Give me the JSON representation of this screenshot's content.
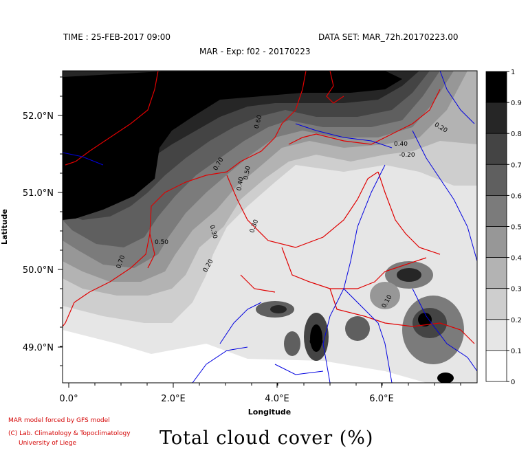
{
  "header": {
    "time": "TIME : 25-FEB-2017 09:00",
    "dataset": "DATA SET: MAR_72h.20170223.00",
    "experiment": "MAR - Exp: f02 - 20170223"
  },
  "map": {
    "xlabel": "Longitude",
    "ylabel": "Latitude",
    "x_ticks": [
      "0.0°",
      "2.0°E",
      "4.0°E",
      "6.0°E"
    ],
    "y_ticks": [
      "52.0°N",
      "51.0°N",
      "50.0°N",
      "49.0°N"
    ],
    "contour_labels": [
      "0.70",
      "0.60",
      "0.50",
      "0.40",
      "0.30",
      "0.20",
      "0.70",
      "0.50",
      "0.40",
      "0.30",
      "0.20",
      "-0.20",
      "0.10",
      "0.50"
    ],
    "border_color": "#e00000",
    "river_color": "#0000e0"
  },
  "colorbar": {
    "levels": [
      "1",
      "0.9",
      "0.8",
      "0.7",
      "0.6",
      "0.5",
      "0.4",
      "0.3",
      "0.2",
      "0.1",
      "0"
    ],
    "colors": [
      "#000000",
      "#262626",
      "#444444",
      "#5f5f5f",
      "#7b7b7b",
      "#979797",
      "#b3b3b3",
      "#cecece",
      "#e6e6e6",
      "#ffffff"
    ]
  },
  "footer": {
    "credit_line1": "MAR model forced by GFS model",
    "credit_line2": "(C) Lab. Climatology & Topoclimatology",
    "credit_line3": "University of Liege",
    "title": "Total cloud cover (%)"
  }
}
